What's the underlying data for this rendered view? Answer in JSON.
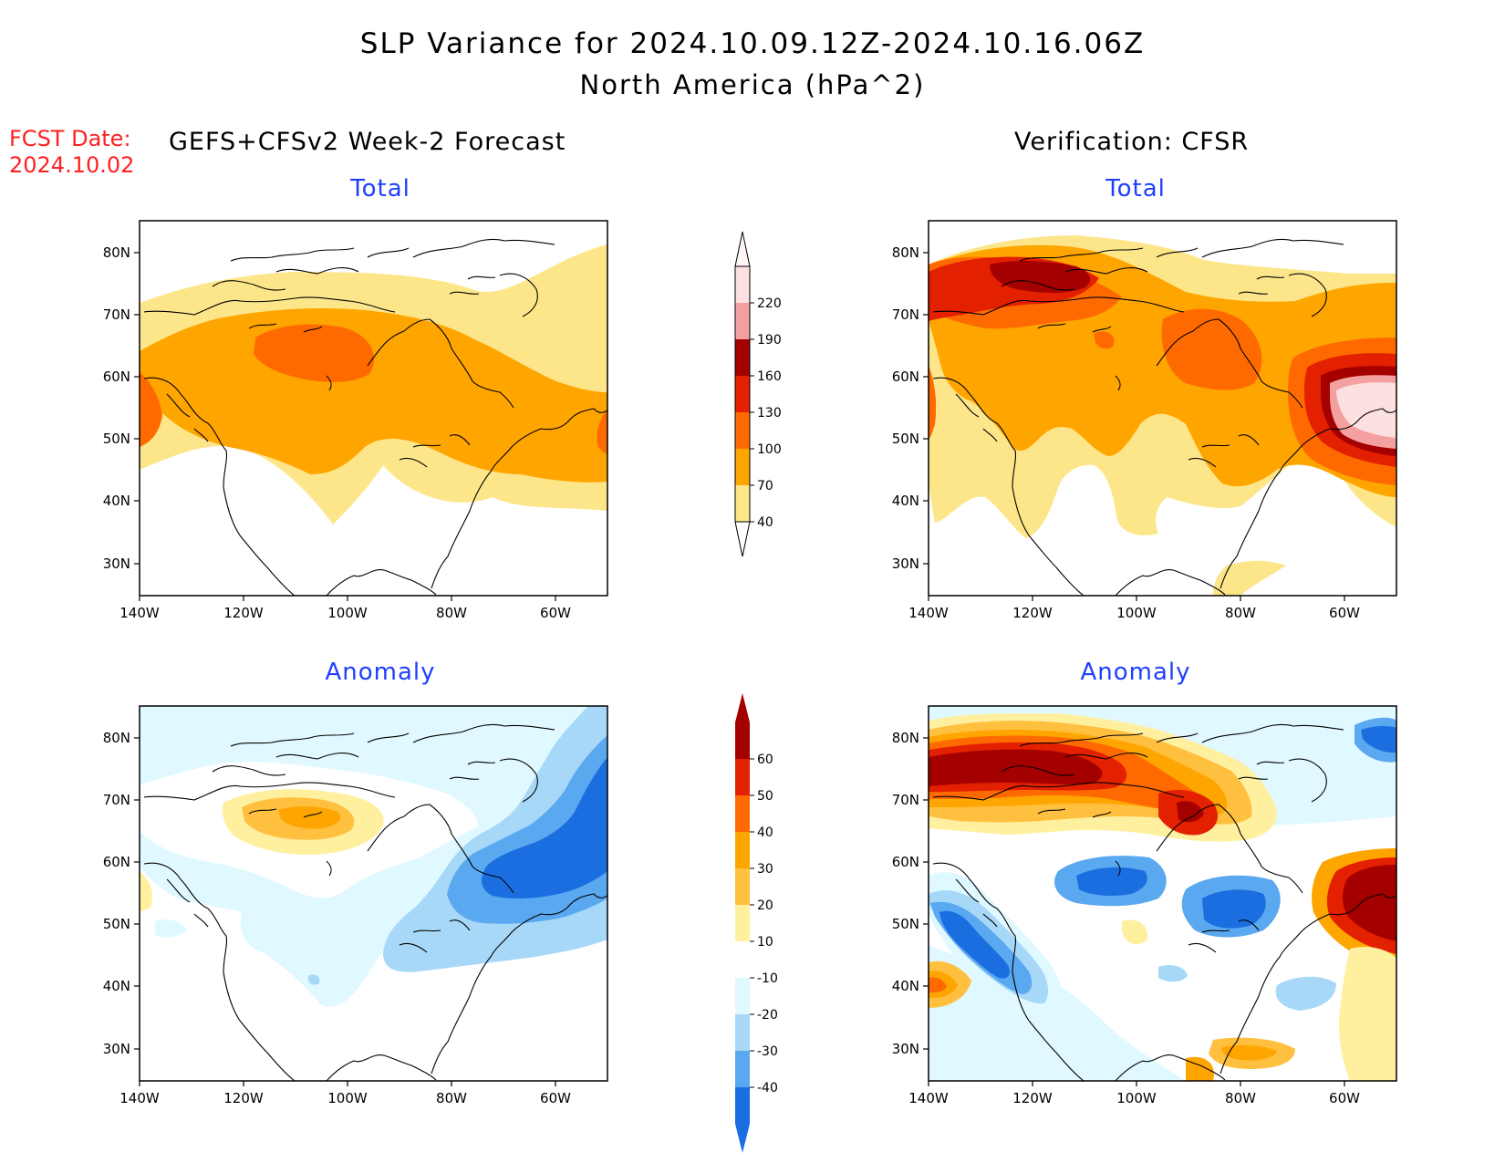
{
  "title": {
    "line1": "SLP Variance for 2024.10.09.12Z-2024.10.16.06Z",
    "line2": "North America (hPa^2)"
  },
  "fcst_date": {
    "label": "FCST Date:",
    "value": "2024.10.02"
  },
  "columns": {
    "left_header": "GEFS+CFSv2 Week-2 Forecast",
    "right_header": "Verification: CFSR"
  },
  "panels": {
    "total_label": "Total",
    "anomaly_label": "Anomaly"
  },
  "axes": {
    "lat_ticks": [
      "80N",
      "70N",
      "60N",
      "50N",
      "40N",
      "30N"
    ],
    "lon_ticks": [
      "140W",
      "120W",
      "100W",
      "80W",
      "60W"
    ]
  },
  "colorbars": {
    "total": {
      "levels": [
        "40",
        "70",
        "100",
        "130",
        "160",
        "190",
        "220"
      ],
      "colors": [
        "#fde68a",
        "#ffa500",
        "#ff6a00",
        "#e32000",
        "#a50000",
        "#f4a0a0",
        "#fde0e0"
      ]
    },
    "anomaly": {
      "levels": [
        "60",
        "50",
        "40",
        "30",
        "20",
        "10",
        "-10",
        "-20",
        "-30",
        "-40"
      ],
      "colors": [
        "#a50000",
        "#e32000",
        "#ff6a00",
        "#ffa500",
        "#ffc040",
        "#fff0a0",
        "#ffffff",
        "#e0f8ff",
        "#a8d8f8",
        "#5aa8f0",
        "#1a6ee0"
      ]
    }
  },
  "colors": {
    "title_red": "#ff2020",
    "subtitle_blue": "#1f3fff"
  }
}
